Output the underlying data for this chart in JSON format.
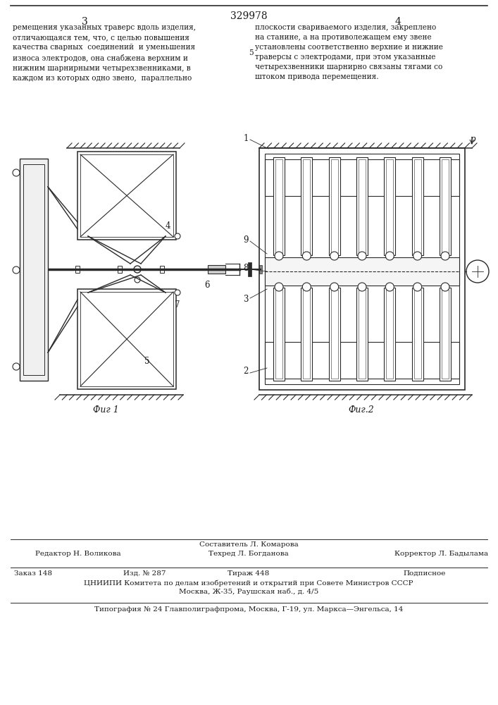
{
  "page_number_center": "329978",
  "page_col_left": "3",
  "page_col_right": "4",
  "bg_color": "#ffffff",
  "text_color": "#1a1a1a",
  "line_color": "#2a2a2a",
  "fig1_label": "Фиг 1",
  "fig2_label": "Фиг.2"
}
